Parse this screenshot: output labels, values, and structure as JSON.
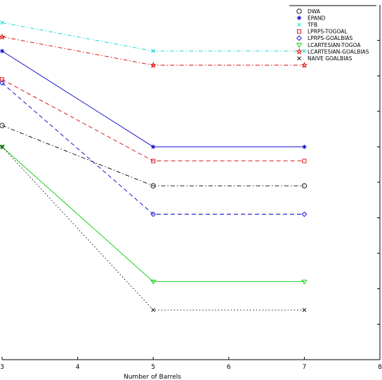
{
  "chart_data": {
    "type": "line",
    "title": "",
    "xlabel": "Number of Barrels",
    "ylabel": "",
    "xlim": [
      3,
      8
    ],
    "ylim": [
      0,
      1
    ],
    "x_ticks": [
      "3",
      "4",
      "5",
      "6",
      "7",
      "8"
    ],
    "x": [
      3,
      5,
      7
    ],
    "legend_position": "top-right",
    "grid": false,
    "series": [
      {
        "name": "DWA",
        "color": "#000000",
        "dash": "dashdot",
        "marker": "circle",
        "values": [
          0.66,
          0.49,
          0.49
        ]
      },
      {
        "name": "EPAND",
        "color": "#0000cc",
        "dash": "solid",
        "marker": "star",
        "values": [
          0.87,
          0.6,
          0.6
        ]
      },
      {
        "name": "TFB",
        "color": "#00d8d8",
        "dash": "dashdot",
        "marker": "x",
        "values": [
          0.95,
          0.87,
          0.87
        ]
      },
      {
        "name": "LPRPS-TOGOAL",
        "color": "#dd0000",
        "dash": "dashed",
        "marker": "square",
        "values": [
          0.79,
          0.56,
          0.56
        ]
      },
      {
        "name": "LPRPS-GOALBIAS",
        "color": "#0000cc",
        "dash": "dashed",
        "marker": "diamond",
        "values": [
          0.78,
          0.41,
          0.41
        ]
      },
      {
        "name": "LCARTESIAN-TOGOA",
        "color": "#00cc00",
        "dash": "solid",
        "marker": "triangle-down",
        "values": [
          0.6,
          0.22,
          0.22
        ]
      },
      {
        "name": "LCARTESIAN-GOALBIAS",
        "color": "#dd0000",
        "dash": "dashdot",
        "marker": "pentagram",
        "values": [
          0.91,
          0.83,
          0.83
        ]
      },
      {
        "name": "NAIVE GOALBIAS",
        "color": "#000000",
        "dash": "dotted",
        "marker": "x",
        "values": [
          0.6,
          0.14,
          0.14
        ]
      }
    ]
  }
}
